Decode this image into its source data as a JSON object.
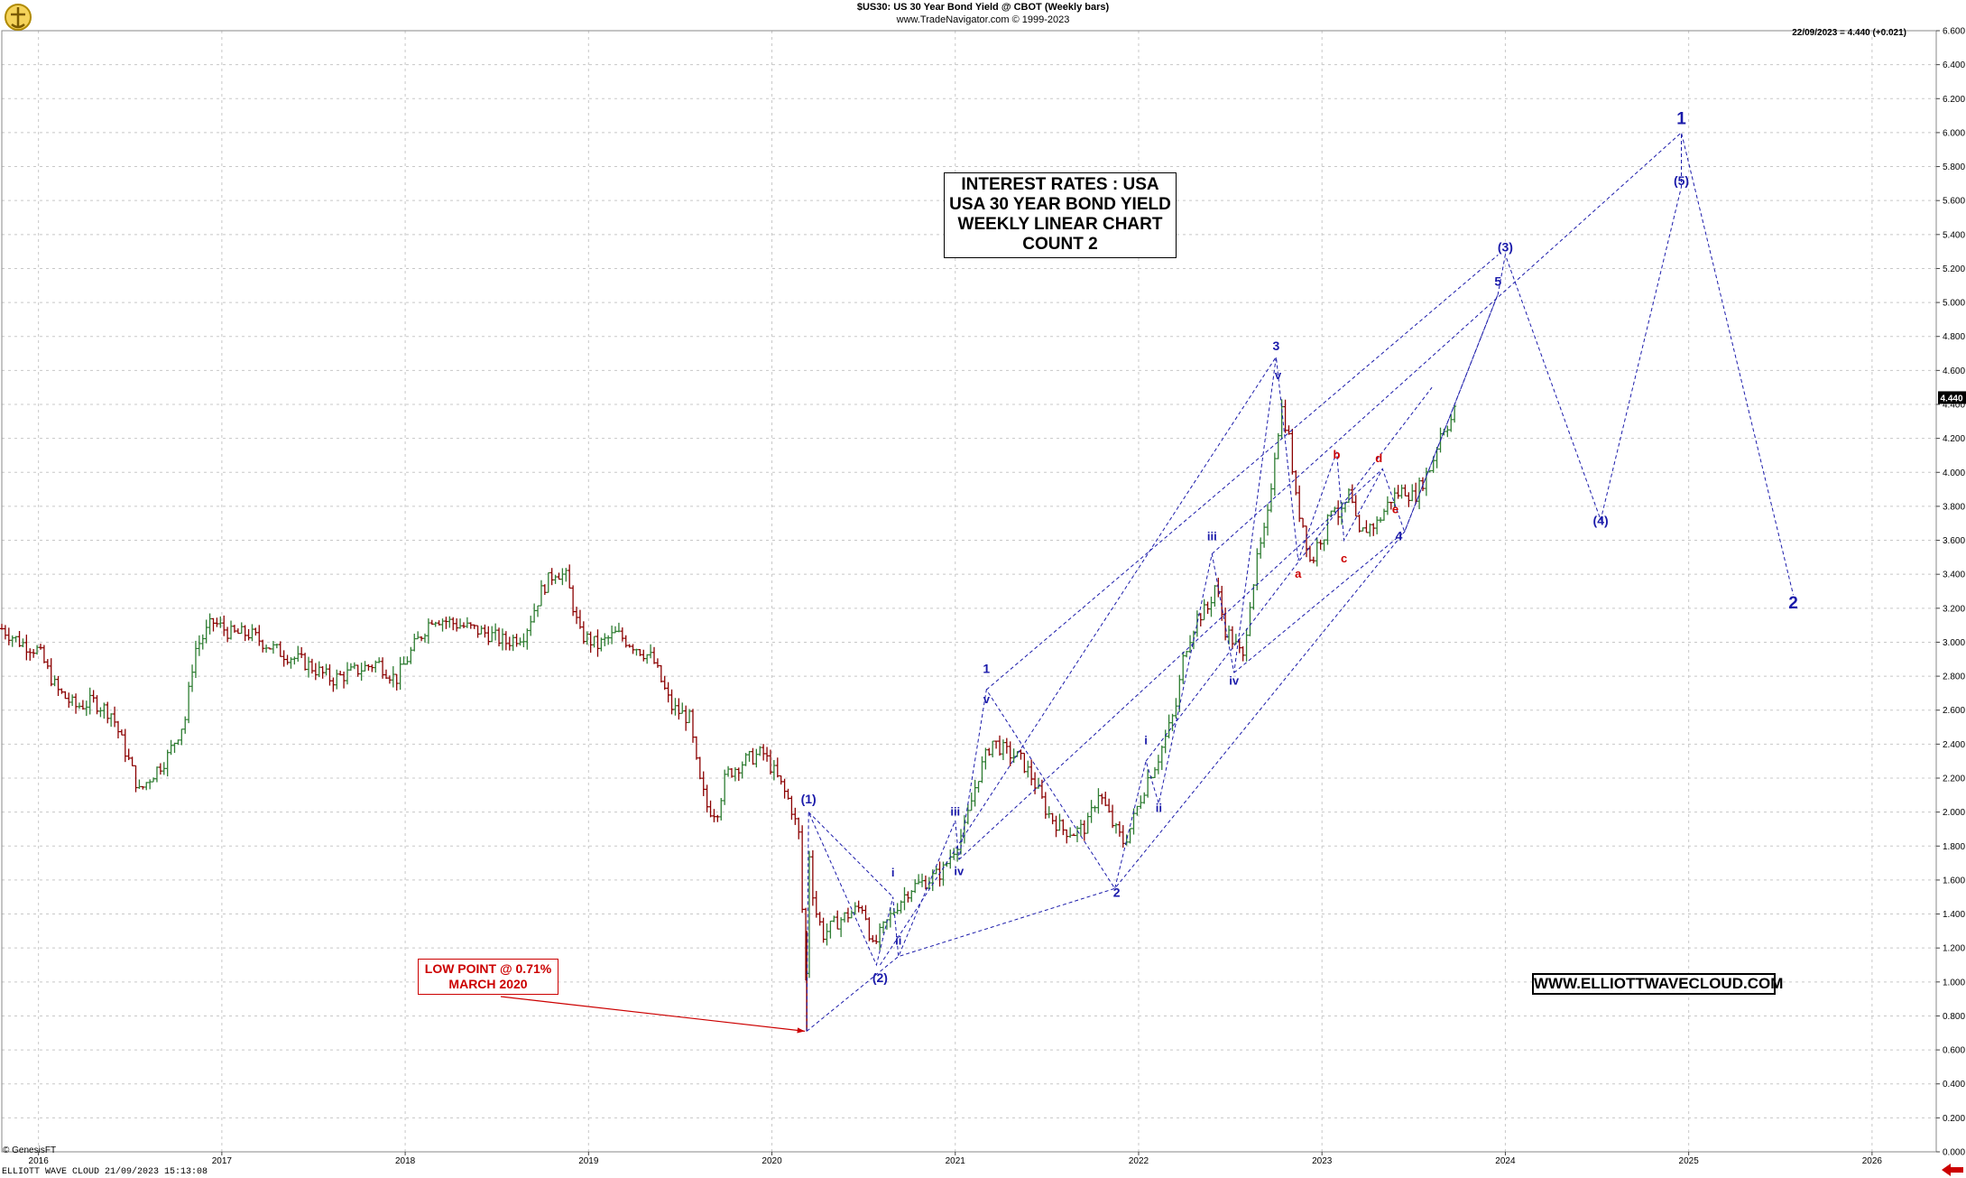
{
  "header": {
    "line1": "$US30:  US 30 Year Bond Yield @ CBOT  (Weekly bars)",
    "line2": "www.TradeNavigator.com © 1999-2023"
  },
  "readout": "22/09/2023 = 4.440 (+0.021)",
  "title_box": [
    "INTEREST RATES : USA",
    "USA 30 YEAR BOND YIELD",
    "WEEKLY LINEAR CHART",
    "COUNT 2"
  ],
  "low_point_box": [
    "LOW POINT @ 0.71%",
    "MARCH 2020"
  ],
  "website": "WWW.ELLIOTTWAVECLOUD.COM",
  "footer": "ELLIOTT WAVE CLOUD   21/09/2023 15:13:08",
  "copyright": "© GenesisFT",
  "colors": {
    "up_bar": "#2e7d32",
    "down_bar": "#8b0000",
    "wave_blue": "#1a1aaa",
    "wave_red": "#cc0000",
    "grid": "#bbbbbb"
  },
  "chart_data": {
    "type": "candlestick",
    "title": "$US30:  US 30 Year Bond Yield @ CBOT  (Weekly bars)",
    "x_ticks": [
      "2016",
      "2017",
      "2018",
      "2019",
      "2020",
      "2021",
      "2022",
      "2023",
      "2024",
      "2025",
      "2026"
    ],
    "y_ticks": [
      "0.000",
      "0.200",
      "0.400",
      "0.600",
      "0.800",
      "1.000",
      "1.200",
      "1.400",
      "1.600",
      "1.800",
      "2.000",
      "2.200",
      "2.400",
      "2.600",
      "2.800",
      "3.000",
      "3.200",
      "3.400",
      "3.600",
      "3.800",
      "4.000",
      "4.200",
      "4.400",
      "4.600",
      "4.800",
      "5.000",
      "5.200",
      "5.400",
      "5.600",
      "5.800",
      "6.000",
      "6.200",
      "6.400",
      "6.600"
    ],
    "ylim": [
      0,
      6.6
    ],
    "xlim": [
      2015.8,
      2026.35
    ],
    "last_value": "4.440",
    "price_path": [
      [
        2015.8,
        3.08
      ],
      [
        2015.9,
        3.0
      ],
      [
        2016.0,
        2.95
      ],
      [
        2016.1,
        2.72
      ],
      [
        2016.2,
        2.62
      ],
      [
        2016.3,
        2.65
      ],
      [
        2016.4,
        2.58
      ],
      [
        2016.5,
        2.28
      ],
      [
        2016.55,
        2.12
      ],
      [
        2016.62,
        2.22
      ],
      [
        2016.7,
        2.32
      ],
      [
        2016.8,
        2.55
      ],
      [
        2016.85,
        2.95
      ],
      [
        2016.95,
        3.12
      ],
      [
        2017.05,
        3.05
      ],
      [
        2017.15,
        3.05
      ],
      [
        2017.3,
        2.95
      ],
      [
        2017.45,
        2.88
      ],
      [
        2017.6,
        2.78
      ],
      [
        2017.7,
        2.82
      ],
      [
        2017.85,
        2.88
      ],
      [
        2017.95,
        2.78
      ],
      [
        2018.05,
        2.98
      ],
      [
        2018.15,
        3.15
      ],
      [
        2018.3,
        3.1
      ],
      [
        2018.45,
        3.05
      ],
      [
        2018.55,
        3.0
      ],
      [
        2018.65,
        3.05
      ],
      [
        2018.75,
        3.32
      ],
      [
        2018.82,
        3.42
      ],
      [
        2018.88,
        3.38
      ],
      [
        2018.95,
        3.05
      ],
      [
        2019.05,
        2.98
      ],
      [
        2019.15,
        3.05
      ],
      [
        2019.25,
        2.98
      ],
      [
        2019.35,
        2.9
      ],
      [
        2019.45,
        2.62
      ],
      [
        2019.55,
        2.55
      ],
      [
        2019.6,
        2.2
      ],
      [
        2019.65,
        2.02
      ],
      [
        2019.7,
        2.0
      ],
      [
        2019.75,
        2.22
      ],
      [
        2019.85,
        2.3
      ],
      [
        2019.95,
        2.35
      ],
      [
        2020.02,
        2.22
      ],
      [
        2020.1,
        2.05
      ],
      [
        2020.15,
        1.85
      ],
      [
        2020.17,
        1.3
      ],
      [
        2020.19,
        0.95
      ],
      [
        2020.2,
        1.8
      ],
      [
        2020.23,
        1.45
      ],
      [
        2020.28,
        1.28
      ],
      [
        2020.35,
        1.35
      ],
      [
        2020.42,
        1.4
      ],
      [
        2020.5,
        1.45
      ],
      [
        2020.55,
        1.2
      ],
      [
        2020.6,
        1.3
      ],
      [
        2020.68,
        1.45
      ],
      [
        2020.75,
        1.55
      ],
      [
        2020.85,
        1.6
      ],
      [
        2020.93,
        1.65
      ],
      [
        2021.0,
        1.8
      ],
      [
        2021.05,
        1.9
      ],
      [
        2021.12,
        2.2
      ],
      [
        2021.2,
        2.42
      ],
      [
        2021.28,
        2.35
      ],
      [
        2021.35,
        2.32
      ],
      [
        2021.42,
        2.2
      ],
      [
        2021.5,
        2.0
      ],
      [
        2021.58,
        1.9
      ],
      [
        2021.65,
        1.88
      ],
      [
        2021.72,
        1.92
      ],
      [
        2021.78,
        2.12
      ],
      [
        2021.83,
        2.0
      ],
      [
        2021.87,
        1.9
      ],
      [
        2021.92,
        1.82
      ],
      [
        2021.96,
        1.92
      ],
      [
        2022.0,
        2.05
      ],
      [
        2022.05,
        2.2
      ],
      [
        2022.1,
        2.3
      ],
      [
        2022.15,
        2.45
      ],
      [
        2022.2,
        2.6
      ],
      [
        2022.25,
        2.95
      ],
      [
        2022.32,
        3.15
      ],
      [
        2022.38,
        3.2
      ],
      [
        2022.42,
        3.35
      ],
      [
        2022.47,
        3.08
      ],
      [
        2022.52,
        3.0
      ],
      [
        2022.57,
        2.9
      ],
      [
        2022.6,
        3.2
      ],
      [
        2022.65,
        3.5
      ],
      [
        2022.7,
        3.7
      ],
      [
        2022.74,
        4.1
      ],
      [
        2022.78,
        4.38
      ],
      [
        2022.82,
        4.2
      ],
      [
        2022.86,
        3.82
      ],
      [
        2022.9,
        3.68
      ],
      [
        2022.94,
        3.45
      ],
      [
        2022.98,
        3.6
      ],
      [
        2023.02,
        3.65
      ],
      [
        2023.06,
        3.85
      ],
      [
        2023.1,
        3.72
      ],
      [
        2023.15,
        3.88
      ],
      [
        2023.2,
        3.62
      ],
      [
        2023.25,
        3.68
      ],
      [
        2023.3,
        3.7
      ],
      [
        2023.38,
        3.85
      ],
      [
        2023.45,
        3.9
      ],
      [
        2023.5,
        3.85
      ],
      [
        2023.55,
        3.95
      ],
      [
        2023.6,
        4.05
      ],
      [
        2023.65,
        4.25
      ],
      [
        2023.7,
        4.3
      ],
      [
        2023.73,
        4.38
      ]
    ],
    "elliott_labels": [
      {
        "text": "(1)",
        "x": 2020.2,
        "y": 2.05,
        "color": "blue",
        "size": "m"
      },
      {
        "text": "(2)",
        "x": 2020.59,
        "y": 1.0,
        "color": "blue",
        "size": "m"
      },
      {
        "text": "i",
        "x": 2020.66,
        "y": 1.62,
        "color": "blue",
        "size": "s"
      },
      {
        "text": "ii",
        "x": 2020.69,
        "y": 1.22,
        "color": "blue",
        "size": "s"
      },
      {
        "text": "iii",
        "x": 2021.0,
        "y": 1.98,
        "color": "blue",
        "size": "s"
      },
      {
        "text": "iv",
        "x": 2021.02,
        "y": 1.63,
        "color": "blue",
        "size": "s"
      },
      {
        "text": "1",
        "x": 2021.17,
        "y": 2.82,
        "color": "blue",
        "size": "m"
      },
      {
        "text": "v",
        "x": 2021.17,
        "y": 2.64,
        "color": "blue",
        "size": "s"
      },
      {
        "text": "2",
        "x": 2021.88,
        "y": 1.5,
        "color": "blue",
        "size": "m"
      },
      {
        "text": "i",
        "x": 2022.04,
        "y": 2.4,
        "color": "blue",
        "size": "s"
      },
      {
        "text": "ii",
        "x": 2022.11,
        "y": 2.0,
        "color": "blue",
        "size": "s"
      },
      {
        "text": "iii",
        "x": 2022.4,
        "y": 3.6,
        "color": "blue",
        "size": "s"
      },
      {
        "text": "iv",
        "x": 2022.52,
        "y": 2.75,
        "color": "blue",
        "size": "s"
      },
      {
        "text": "3",
        "x": 2022.75,
        "y": 4.72,
        "color": "blue",
        "size": "m"
      },
      {
        "text": "v",
        "x": 2022.76,
        "y": 4.55,
        "color": "blue",
        "size": "s"
      },
      {
        "text": "a",
        "x": 2022.87,
        "y": 3.38,
        "color": "red",
        "size": "s"
      },
      {
        "text": "b",
        "x": 2023.08,
        "y": 4.08,
        "color": "red",
        "size": "s"
      },
      {
        "text": "c",
        "x": 2023.12,
        "y": 3.47,
        "color": "red",
        "size": "s"
      },
      {
        "text": "d",
        "x": 2023.31,
        "y": 4.06,
        "color": "red",
        "size": "s"
      },
      {
        "text": "e",
        "x": 2023.4,
        "y": 3.76,
        "color": "red",
        "size": "s"
      },
      {
        "text": "4",
        "x": 2023.42,
        "y": 3.6,
        "color": "blue",
        "size": "m"
      },
      {
        "text": "5",
        "x": 2023.96,
        "y": 5.1,
        "color": "blue",
        "size": "m"
      },
      {
        "text": "(3)",
        "x": 2024.0,
        "y": 5.3,
        "color": "blue",
        "size": "m"
      },
      {
        "text": "(4)",
        "x": 2024.52,
        "y": 3.69,
        "color": "blue",
        "size": "m"
      },
      {
        "text": "(5)",
        "x": 2024.96,
        "y": 5.69,
        "color": "blue",
        "size": "m"
      },
      {
        "text": "1",
        "x": 2024.96,
        "y": 6.05,
        "color": "blue",
        "size": "l"
      },
      {
        "text": "2",
        "x": 2025.57,
        "y": 3.2,
        "color": "blue",
        "size": "l"
      }
    ],
    "wave_paths": [
      [
        [
          2020.19,
          0.71
        ],
        [
          2020.2,
          2.0
        ],
        [
          2020.57,
          1.1
        ],
        [
          2020.66,
          1.5
        ],
        [
          2020.69,
          1.15
        ],
        [
          2021.0,
          1.95
        ],
        [
          2021.02,
          1.72
        ],
        [
          2021.17,
          2.72
        ],
        [
          2021.87,
          1.55
        ],
        [
          2022.04,
          2.3
        ],
        [
          2022.11,
          2.05
        ],
        [
          2022.4,
          3.52
        ],
        [
          2022.52,
          2.82
        ],
        [
          2022.75,
          4.68
        ],
        [
          2022.87,
          3.48
        ],
        [
          2023.08,
          4.12
        ],
        [
          2023.12,
          3.6
        ],
        [
          2023.33,
          4.02
        ],
        [
          2023.45,
          3.65
        ],
        [
          2023.96,
          5.05
        ],
        [
          2024.0,
          5.28
        ],
        [
          2024.52,
          3.72
        ],
        [
          2024.96,
          5.68
        ],
        [
          2024.96,
          6.0
        ],
        [
          2025.57,
          3.28
        ]
      ],
      [
        [
          2020.19,
          0.71
        ],
        [
          2020.69,
          1.15
        ],
        [
          2021.87,
          1.55
        ],
        [
          2023.45,
          3.65
        ],
        [
          2023.96,
          5.05
        ]
      ],
      [
        [
          2020.2,
          2.0
        ],
        [
          2020.66,
          1.5
        ]
      ],
      [
        [
          2020.59,
          1.1
        ],
        [
          2022.75,
          4.68
        ]
      ],
      [
        [
          2021.17,
          2.72
        ],
        [
          2023.96,
          5.28
        ]
      ],
      [
        [
          2021.02,
          1.72
        ],
        [
          2023.33,
          4.02
        ]
      ],
      [
        [
          2022.4,
          3.52
        ],
        [
          2024.96,
          6.0
        ]
      ],
      [
        [
          2022.52,
          2.82
        ],
        [
          2023.45,
          3.65
        ]
      ],
      [
        [
          2022.04,
          2.3
        ],
        [
          2023.6,
          4.5
        ]
      ]
    ],
    "low_point": {
      "value": 0.71,
      "date": "MARCH 2020",
      "x": 2020.19
    }
  }
}
